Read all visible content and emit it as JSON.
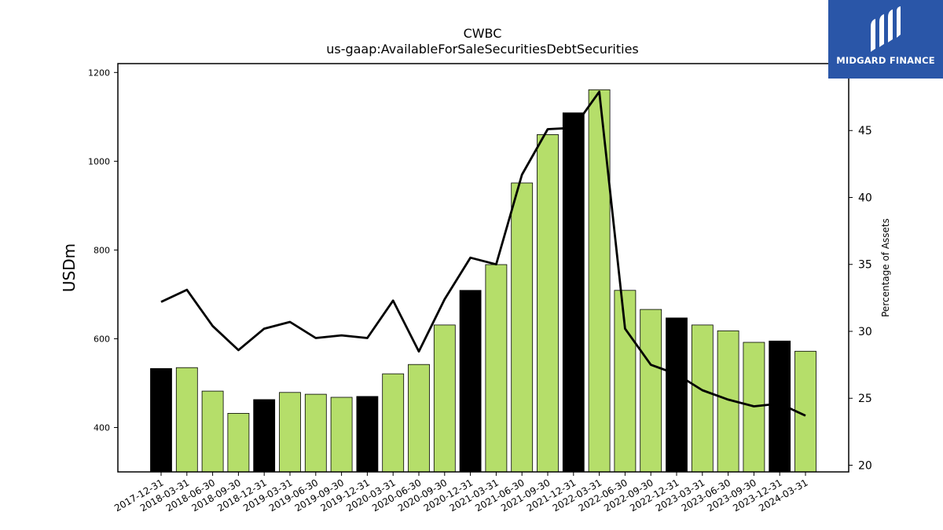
{
  "logo": {
    "text": "MIDGARD FINANCE"
  },
  "chart_data": {
    "type": "bar+line",
    "title": "CWBC",
    "subtitle": "us-gaap:AvailableForSaleSecuritiesDebtSecurities",
    "ylabel": "USDm",
    "y2label": "Percentage of Assets",
    "ylim": [
      300,
      1220
    ],
    "y2lim": [
      19.5,
      50
    ],
    "yticks": [
      400,
      600,
      800,
      1000,
      1200
    ],
    "y2ticks": [
      20,
      25,
      30,
      35,
      40,
      45
    ],
    "categories": [
      "2017-12-31",
      "2018-03-31",
      "2018-06-30",
      "2018-09-30",
      "2018-12-31",
      "2019-03-31",
      "2019-06-30",
      "2019-09-30",
      "2019-12-31",
      "2020-03-31",
      "2020-06-30",
      "2020-09-30",
      "2020-12-31",
      "2021-03-31",
      "2021-06-30",
      "2021-09-30",
      "2021-12-31",
      "2022-03-31",
      "2022-06-30",
      "2022-09-30",
      "2022-12-31",
      "2023-03-31",
      "2023-06-30",
      "2023-09-30",
      "2023-12-31",
      "2024-03-31"
    ],
    "bar_series": {
      "values": [
        533,
        535,
        482,
        432,
        463,
        479,
        475,
        468,
        470,
        521,
        542,
        631,
        709,
        767,
        951,
        1060,
        1109,
        1161,
        709,
        666,
        647,
        631,
        618,
        592,
        595,
        572
      ],
      "colors": [
        "#000000",
        "#b5de6a",
        "#b5de6a",
        "#b5de6a",
        "#000000",
        "#b5de6a",
        "#b5de6a",
        "#b5de6a",
        "#000000",
        "#b5de6a",
        "#b5de6a",
        "#b5de6a",
        "#000000",
        "#b5de6a",
        "#b5de6a",
        "#b5de6a",
        "#000000",
        "#b5de6a",
        "#b5de6a",
        "#b5de6a",
        "#000000",
        "#b5de6a",
        "#b5de6a",
        "#b5de6a",
        "#000000",
        "#b5de6a"
      ]
    },
    "line_series": {
      "axis": "right",
      "color": "#000000",
      "values": [
        32.2,
        33.1,
        30.4,
        28.6,
        30.2,
        30.7,
        29.5,
        29.7,
        29.5,
        32.3,
        28.5,
        32.4,
        35.5,
        35.0,
        41.7,
        45.1,
        45.2,
        47.9,
        30.2,
        27.5,
        26.8,
        25.6,
        24.9,
        24.4,
        24.6,
        23.7
      ]
    },
    "grid": false,
    "legend": "none"
  }
}
